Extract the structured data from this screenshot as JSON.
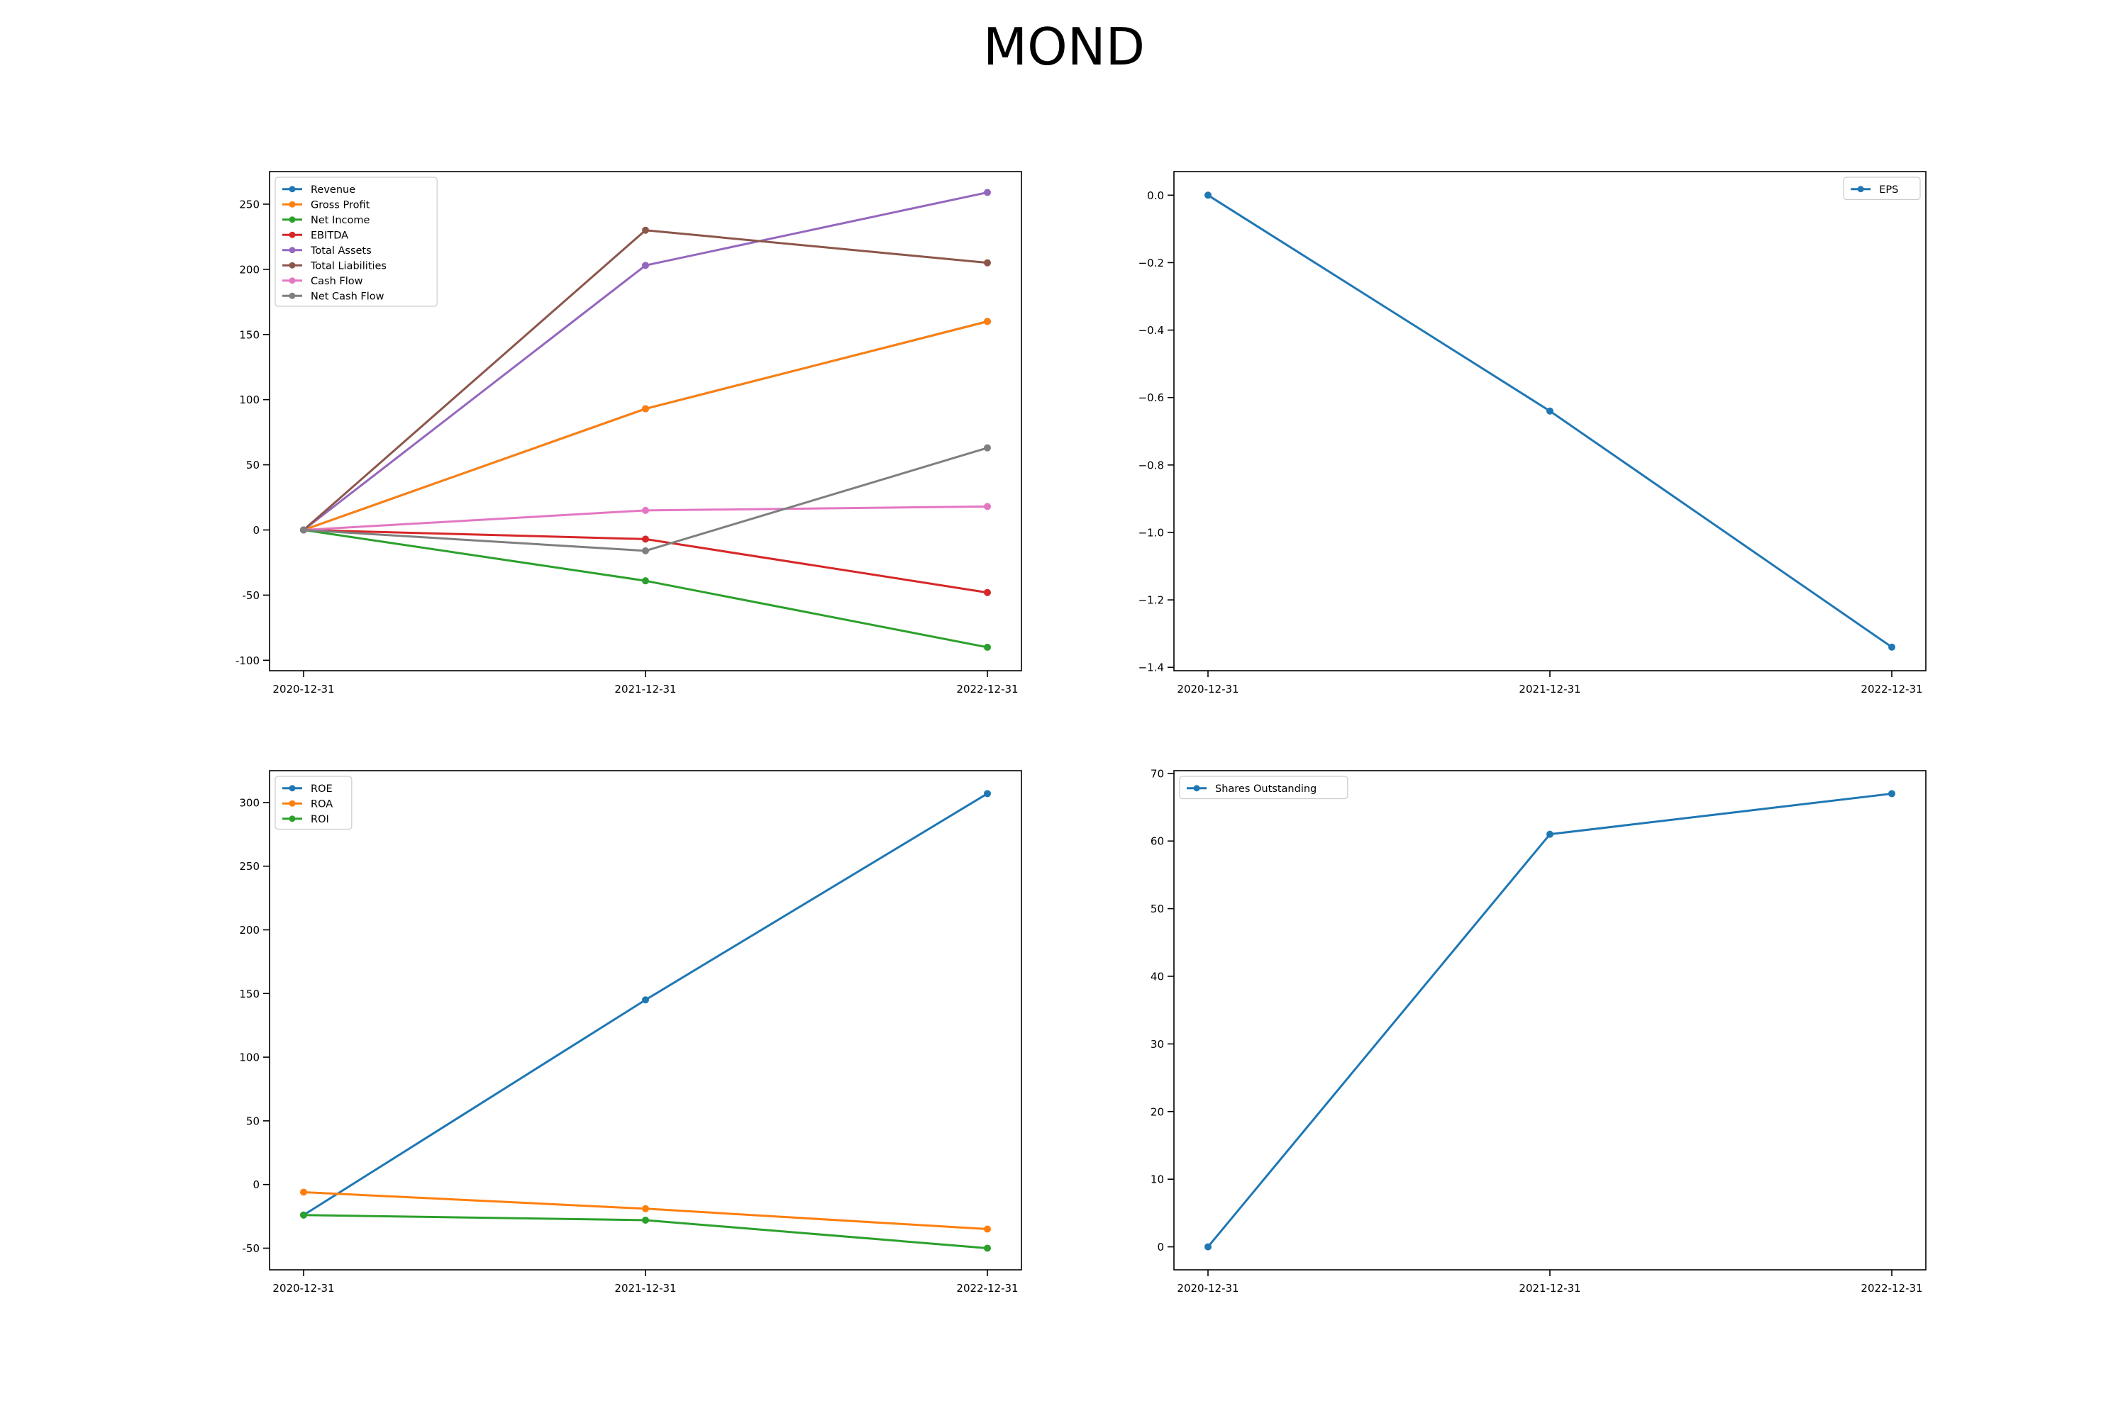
{
  "page": {
    "title": "MOND"
  },
  "chart_data": [
    {
      "type": "line",
      "x": [
        "2020-12-31",
        "2021-12-31",
        "2022-12-31"
      ],
      "ylim": [
        -108,
        275
      ],
      "yticks": [
        -100,
        -50,
        0,
        50,
        100,
        150,
        200,
        250
      ],
      "legend": "upper-left",
      "grid": false,
      "series": [
        {
          "name": "Revenue",
          "color": "#1f77b4",
          "values": [
            0,
            93,
            160
          ]
        },
        {
          "name": "Gross Profit",
          "color": "#ff7f0e",
          "values": [
            0,
            93,
            160
          ]
        },
        {
          "name": "Net Income",
          "color": "#2ca02c",
          "values": [
            0,
            -39,
            -90
          ]
        },
        {
          "name": "EBITDA",
          "color": "#d62728",
          "values": [
            0,
            -7,
            -48
          ]
        },
        {
          "name": "Total Assets",
          "color": "#9467bd",
          "values": [
            0,
            203,
            259
          ]
        },
        {
          "name": "Total Liabilities",
          "color": "#8c564b",
          "values": [
            0,
            230,
            205
          ]
        },
        {
          "name": "Cash Flow",
          "color": "#e377c2",
          "values": [
            0,
            15,
            18
          ]
        },
        {
          "name": "Net Cash Flow",
          "color": "#7f7f7f",
          "values": [
            0,
            -16,
            63
          ]
        }
      ]
    },
    {
      "type": "line",
      "x": [
        "2020-12-31",
        "2021-12-31",
        "2022-12-31"
      ],
      "ylim": [
        -1.41,
        0.07
      ],
      "yticks": [
        0.0,
        -0.2,
        -0.4,
        -0.6,
        -0.8,
        -1.0,
        -1.2,
        -1.4
      ],
      "ytick_labels": [
        "0.0",
        "−0.2",
        "−0.4",
        "−0.6",
        "−0.8",
        "−1.0",
        "−1.2",
        "−1.4"
      ],
      "legend": "upper-right",
      "grid": false,
      "series": [
        {
          "name": "EPS",
          "color": "#1f77b4",
          "values": [
            0.0,
            -0.64,
            -1.34
          ]
        }
      ]
    },
    {
      "type": "line",
      "x": [
        "2020-12-31",
        "2021-12-31",
        "2022-12-31"
      ],
      "ylim": [
        -67,
        325
      ],
      "yticks": [
        -50,
        0,
        50,
        100,
        150,
        200,
        250,
        300
      ],
      "legend": "upper-left",
      "grid": false,
      "series": [
        {
          "name": "ROE",
          "color": "#1f77b4",
          "values": [
            -24,
            145,
            307
          ]
        },
        {
          "name": "ROA",
          "color": "#ff7f0e",
          "values": [
            -6,
            -19,
            -35
          ]
        },
        {
          "name": "ROI",
          "color": "#2ca02c",
          "values": [
            -24,
            -28,
            -50
          ]
        }
      ]
    },
    {
      "type": "line",
      "x": [
        "2020-12-31",
        "2021-12-31",
        "2022-12-31"
      ],
      "ylim": [
        -3.4,
        70.4
      ],
      "yticks": [
        0,
        10,
        20,
        30,
        40,
        50,
        60,
        70
      ],
      "legend": "upper-left",
      "grid": false,
      "series": [
        {
          "name": "Shares Outstanding",
          "color": "#1f77b4",
          "values": [
            0,
            61,
            67
          ]
        }
      ]
    }
  ]
}
